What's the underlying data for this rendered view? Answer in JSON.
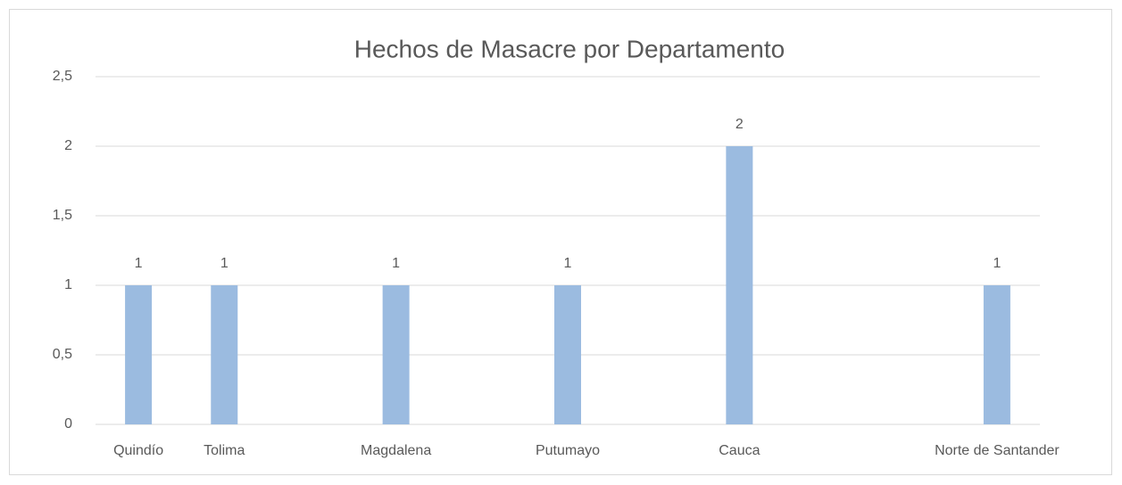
{
  "chart_data": {
    "type": "bar",
    "title": "Hechos de Masacre por Departamento",
    "categories": [
      "Quindío",
      "Tolima",
      null,
      "Magdalena",
      null,
      "Putumayo",
      null,
      "Cauca",
      null,
      null,
      "Norte de Santander"
    ],
    "values": [
      1,
      1,
      null,
      1,
      null,
      1,
      null,
      2,
      null,
      null,
      1
    ],
    "color": "#9bbbe0",
    "ylim": [
      0,
      2.5
    ],
    "yticks": [
      0,
      {
        "value": 0.5,
        "label": "0,5"
      },
      1,
      {
        "value": 1.5,
        "label": "1,5"
      },
      2,
      {
        "value": 2.5,
        "label": "2,5"
      }
    ],
    "grid": true
  }
}
